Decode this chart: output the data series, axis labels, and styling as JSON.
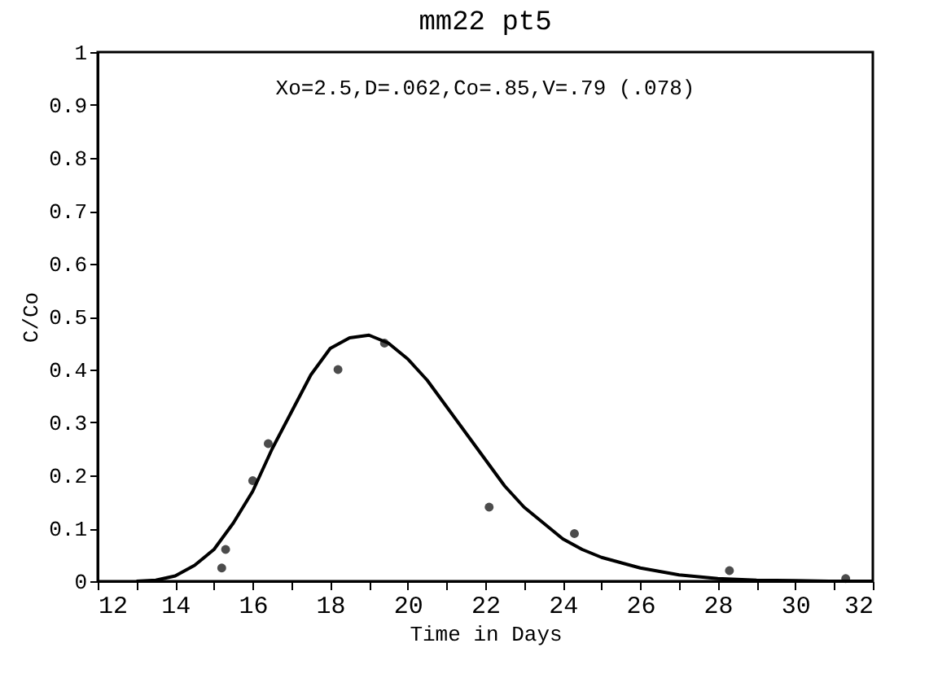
{
  "chart_data": {
    "type": "scatter",
    "title": "mm22 pt5",
    "xlabel": "Time in Days",
    "ylabel": "C/Co",
    "annotations": [
      "Xo=2.5,D=.062,Co=.85,V=.79  (.078)"
    ],
    "xlim": [
      12,
      32
    ],
    "xticks": [
      12,
      {
        "value": 13,
        "label": null
      },
      14,
      {
        "value": 15,
        "label": null
      },
      16,
      {
        "value": 17,
        "label": null
      },
      18,
      {
        "value": 19,
        "label": null
      },
      20,
      {
        "value": 21,
        "label": null
      },
      22,
      {
        "value": 23,
        "label": null
      },
      24,
      {
        "value": 25,
        "label": null
      },
      26,
      {
        "value": 27,
        "label": null
      },
      28,
      {
        "value": 29,
        "label": null
      },
      30,
      {
        "value": 31,
        "label": null
      },
      32
    ],
    "ylim": [
      0,
      1
    ],
    "yticks": [
      0,
      0.1,
      0.2,
      0.3,
      0.4,
      0.5,
      0.6,
      0.7,
      0.8,
      0.9,
      1
    ],
    "grid": false,
    "series": [
      {
        "type": "scatter",
        "marker": "circle",
        "color": "#000000",
        "x": [
          15.2,
          15.3,
          16.0,
          16.4,
          18.2,
          19.4,
          22.1,
          24.3,
          28.3,
          31.3
        ],
        "values": [
          0.025,
          0.06,
          0.19,
          0.26,
          0.4,
          0.45,
          0.14,
          0.09,
          0.02,
          0.005
        ]
      },
      {
        "type": "line",
        "marker": "none",
        "line_style": "solid",
        "color": "#000000",
        "x": [
          13,
          13.5,
          14,
          14.5,
          15,
          15.5,
          16,
          16.5,
          17,
          17.5,
          18,
          18.5,
          19,
          19.5,
          20,
          20.5,
          21,
          21.5,
          22,
          22.5,
          23,
          23.5,
          24,
          24.5,
          25,
          26,
          27,
          28,
          29,
          30,
          31,
          32
        ],
        "values": [
          0,
          0.002,
          0.01,
          0.03,
          0.06,
          0.11,
          0.17,
          0.25,
          0.32,
          0.39,
          0.44,
          0.46,
          0.465,
          0.45,
          0.42,
          0.38,
          0.33,
          0.28,
          0.23,
          0.18,
          0.14,
          0.11,
          0.08,
          0.06,
          0.045,
          0.025,
          0.012,
          0.005,
          0.002,
          0.001,
          0,
          0
        ]
      }
    ]
  }
}
